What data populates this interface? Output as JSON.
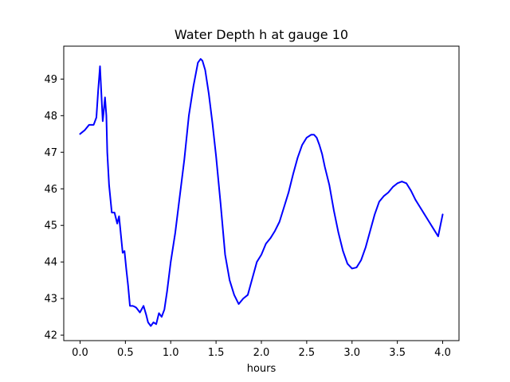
{
  "chart_data": {
    "type": "line",
    "title": "Water Depth h at gauge 10",
    "xlabel": "hours",
    "ylabel": "",
    "xlim": [
      -0.18,
      4.18
    ],
    "ylim": [
      41.85,
      49.9
    ],
    "grid": false,
    "legend": "none",
    "x_ticks": [
      0.0,
      0.5,
      1.0,
      1.5,
      2.0,
      2.5,
      3.0,
      3.5,
      4.0
    ],
    "x_tick_labels": [
      "0.0",
      "0.5",
      "1.0",
      "1.5",
      "2.0",
      "2.5",
      "3.0",
      "3.5",
      "4.0"
    ],
    "y_ticks": [
      42,
      43,
      44,
      45,
      46,
      47,
      48,
      49
    ],
    "y_tick_labels": [
      "42",
      "43",
      "44",
      "45",
      "46",
      "47",
      "48",
      "49"
    ],
    "series": [
      {
        "color": "#0000ff",
        "x": [
          0.0,
          0.05,
          0.1,
          0.15,
          0.18,
          0.2,
          0.22,
          0.235,
          0.25,
          0.26,
          0.275,
          0.29,
          0.3,
          0.32,
          0.35,
          0.38,
          0.41,
          0.43,
          0.45,
          0.47,
          0.49,
          0.51,
          0.53,
          0.55,
          0.58,
          0.6,
          0.62,
          0.66,
          0.7,
          0.73,
          0.75,
          0.78,
          0.81,
          0.84,
          0.87,
          0.9,
          0.93,
          0.96,
          1.0,
          1.05,
          1.1,
          1.15,
          1.2,
          1.25,
          1.3,
          1.33,
          1.35,
          1.38,
          1.42,
          1.46,
          1.5,
          1.55,
          1.6,
          1.65,
          1.7,
          1.75,
          1.8,
          1.85,
          1.9,
          1.95,
          2.0,
          2.05,
          2.1,
          2.15,
          2.2,
          2.25,
          2.3,
          2.35,
          2.4,
          2.45,
          2.5,
          2.55,
          2.58,
          2.61,
          2.64,
          2.67,
          2.7,
          2.75,
          2.8,
          2.85,
          2.9,
          2.95,
          3.0,
          3.05,
          3.1,
          3.15,
          3.2,
          3.25,
          3.3,
          3.35,
          3.4,
          3.45,
          3.5,
          3.55,
          3.6,
          3.65,
          3.7,
          3.75,
          3.8,
          3.85,
          3.9,
          3.95,
          4.0
        ],
        "y": [
          47.5,
          47.6,
          47.75,
          47.75,
          47.95,
          48.7,
          49.35,
          48.6,
          47.85,
          48.1,
          48.5,
          48.0,
          47.0,
          46.1,
          45.35,
          45.35,
          45.05,
          45.25,
          44.75,
          44.25,
          44.3,
          43.8,
          43.35,
          42.8,
          42.8,
          42.78,
          42.75,
          42.62,
          42.8,
          42.55,
          42.35,
          42.25,
          42.35,
          42.3,
          42.6,
          42.5,
          42.7,
          43.2,
          44.0,
          44.8,
          45.8,
          46.8,
          48.0,
          48.8,
          49.45,
          49.55,
          49.5,
          49.25,
          48.6,
          47.8,
          46.9,
          45.6,
          44.2,
          43.5,
          43.1,
          42.85,
          43.0,
          43.1,
          43.55,
          44.0,
          44.2,
          44.5,
          44.65,
          44.85,
          45.1,
          45.5,
          45.9,
          46.4,
          46.85,
          47.2,
          47.4,
          47.48,
          47.48,
          47.4,
          47.2,
          46.95,
          46.6,
          46.1,
          45.4,
          44.8,
          44.3,
          43.95,
          43.82,
          43.85,
          44.05,
          44.4,
          44.85,
          45.3,
          45.65,
          45.8,
          45.9,
          46.05,
          46.15,
          46.2,
          46.15,
          45.95,
          45.7,
          45.5,
          45.3,
          45.1,
          44.9,
          44.7,
          45.3
        ]
      }
    ]
  }
}
